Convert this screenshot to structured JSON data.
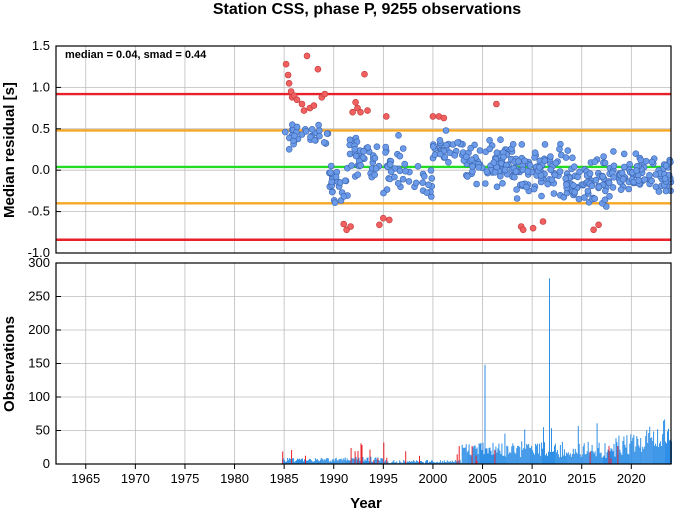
{
  "chart_data": [
    {
      "type": "scatter",
      "title": "Station CSS, phase P, 9255 observations",
      "xlabel": "",
      "ylabel": "Median residual [s]",
      "annotation": "median = 0.04, smad = 0.44",
      "xlim": [
        1962,
        2024
      ],
      "ylim": [
        -1.0,
        1.5
      ],
      "yticks": [
        "1.5",
        "1.0",
        "0.5",
        "0.0",
        "-0.5",
        "-1.0"
      ],
      "grid": true,
      "reference_lines": [
        {
          "y": 0.92,
          "color": "#e8202a"
        },
        {
          "y": 0.48,
          "color": "#f5a623"
        },
        {
          "y": 0.04,
          "color": "#22dd22"
        },
        {
          "y": -0.4,
          "color": "#f5a623"
        },
        {
          "y": -0.84,
          "color": "#e8202a"
        }
      ],
      "point_colors": {
        "inlier": "#6a9ae8",
        "outlier": "#f06060"
      },
      "outliers": [
        [
          1985.2,
          1.28
        ],
        [
          1985.4,
          1.15
        ],
        [
          1985.5,
          1.05
        ],
        [
          1985.7,
          0.95
        ],
        [
          1985.8,
          0.88
        ],
        [
          1986.0,
          0.9
        ],
        [
          1986.3,
          0.85
        ],
        [
          1986.8,
          0.8
        ],
        [
          1987.0,
          0.72
        ],
        [
          1987.3,
          1.38
        ],
        [
          1987.6,
          0.75
        ],
        [
          1988.0,
          0.78
        ],
        [
          1988.4,
          1.22
        ],
        [
          1988.8,
          0.88
        ],
        [
          1989.1,
          0.92
        ],
        [
          1991.0,
          -0.65
        ],
        [
          1991.3,
          -0.72
        ],
        [
          1991.7,
          -0.68
        ],
        [
          1991.9,
          0.7
        ],
        [
          1992.2,
          0.82
        ],
        [
          1992.4,
          0.75
        ],
        [
          1992.7,
          0.7
        ],
        [
          1993.1,
          1.16
        ],
        [
          1993.4,
          0.72
        ],
        [
          1994.6,
          -0.66
        ],
        [
          1995.0,
          -0.58
        ],
        [
          1995.3,
          0.65
        ],
        [
          1995.6,
          -0.6
        ],
        [
          2000.0,
          0.65
        ],
        [
          2000.6,
          0.65
        ],
        [
          2001.1,
          0.63
        ],
        [
          2006.4,
          0.8
        ],
        [
          2008.9,
          -0.68
        ],
        [
          2009.1,
          -0.72
        ],
        [
          2010.1,
          -0.7
        ],
        [
          2011.1,
          -0.62
        ],
        [
          2016.2,
          -0.72
        ],
        [
          2016.7,
          -0.66
        ]
      ],
      "inliers_seed": 20240611
    },
    {
      "type": "bar",
      "title": "",
      "xlabel": "Year",
      "ylabel": "Observations",
      "xlim": [
        1962,
        2024
      ],
      "ylim": [
        0,
        300
      ],
      "yticks": [
        "300",
        "250",
        "200",
        "150",
        "100",
        "50",
        "0"
      ],
      "xticks": [
        "1965",
        "1970",
        "1975",
        "1980",
        "1985",
        "1990",
        "1995",
        "2000",
        "2005",
        "2010",
        "2015",
        "2020"
      ],
      "grid": true,
      "bar_colors": {
        "total": "#2f8fe6",
        "outliers": "#e8202a"
      },
      "notable_bars": [
        {
          "x": 2005.2,
          "value": 148
        },
        {
          "x": 2011.7,
          "value": 277
        }
      ],
      "bars_seed": 98765
    }
  ]
}
